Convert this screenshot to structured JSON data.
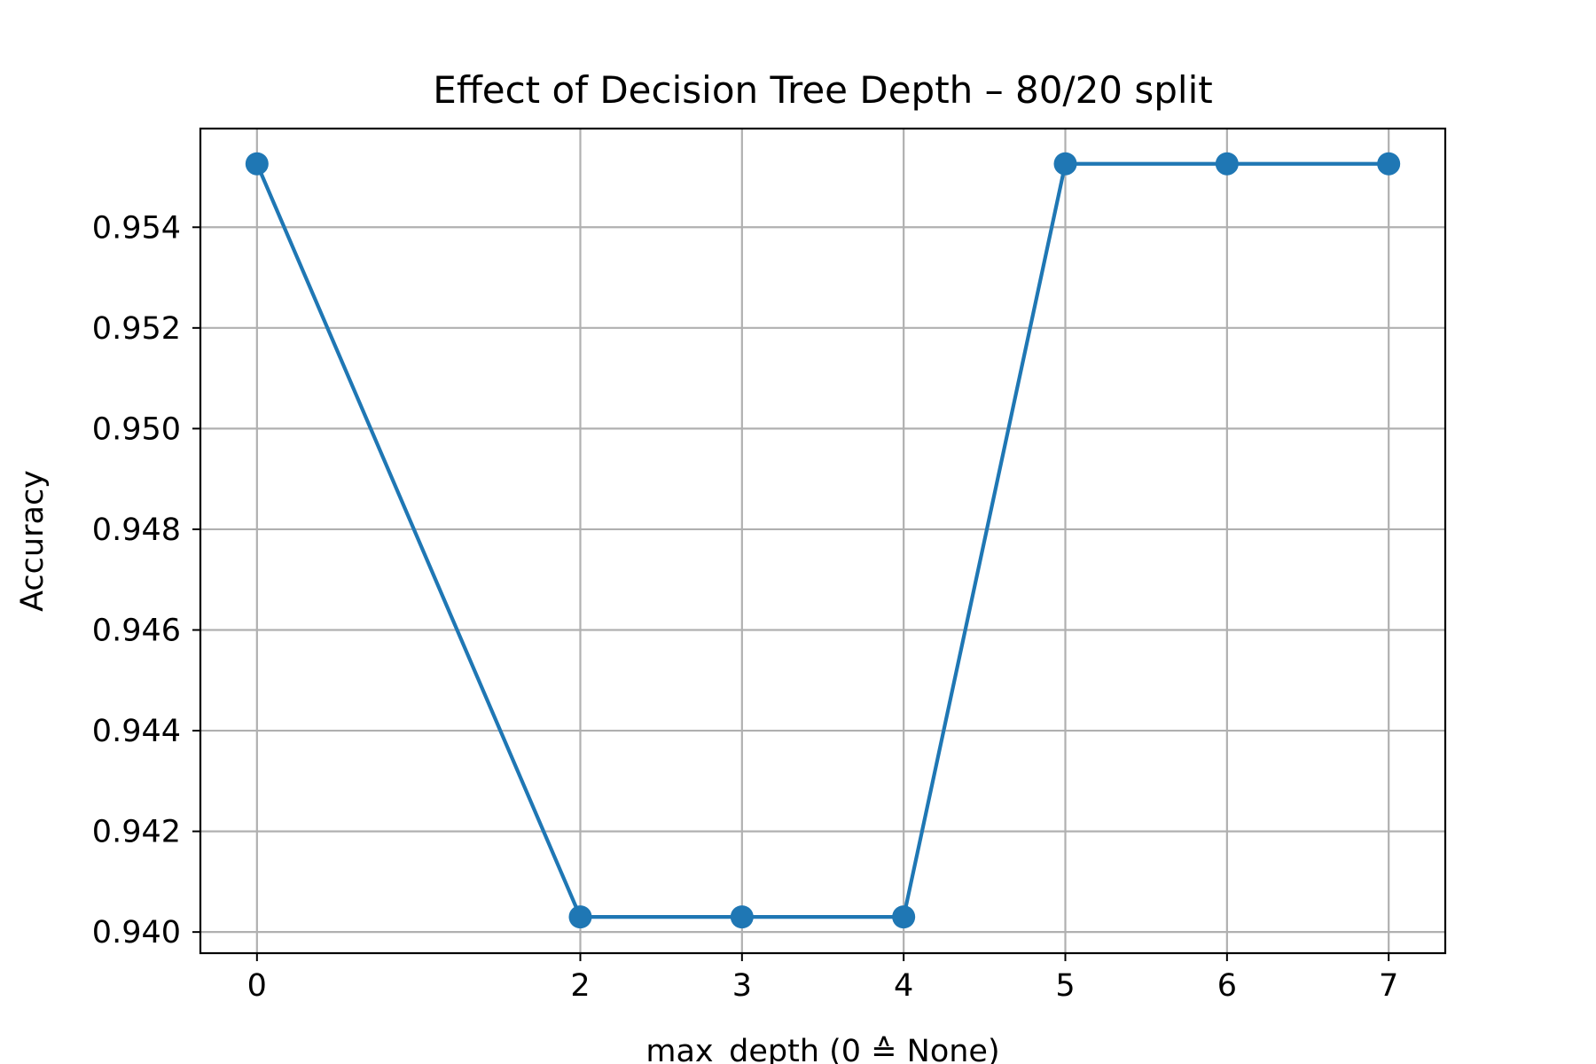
{
  "chart_data": {
    "type": "line",
    "title": "Effect of Decision Tree Depth – 80/20 split",
    "xlabel": "max_depth (0 ≙ None)",
    "ylabel": "Accuracy",
    "x": [
      0,
      2,
      3,
      4,
      5,
      6,
      7
    ],
    "xticks": [
      0,
      2,
      3,
      4,
      5,
      6,
      7
    ],
    "xtick_labels": [
      "0",
      "2",
      "3",
      "4",
      "5",
      "6",
      "7"
    ],
    "yticks": [
      0.94,
      0.942,
      0.944,
      0.946,
      0.948,
      0.95,
      0.952,
      0.954
    ],
    "ytick_labels": [
      "0.940",
      "0.942",
      "0.944",
      "0.946",
      "0.948",
      "0.950",
      "0.952",
      "0.954"
    ],
    "xlim": [
      -0.35,
      7.35
    ],
    "ylim": [
      0.93958,
      0.95596
    ],
    "grid": true,
    "series": [
      {
        "values": [
          0.95526,
          0.9403,
          0.9403,
          0.9403,
          0.95526,
          0.95526,
          0.95526
        ],
        "color": "#1f77b4",
        "marker": "circle"
      }
    ]
  }
}
